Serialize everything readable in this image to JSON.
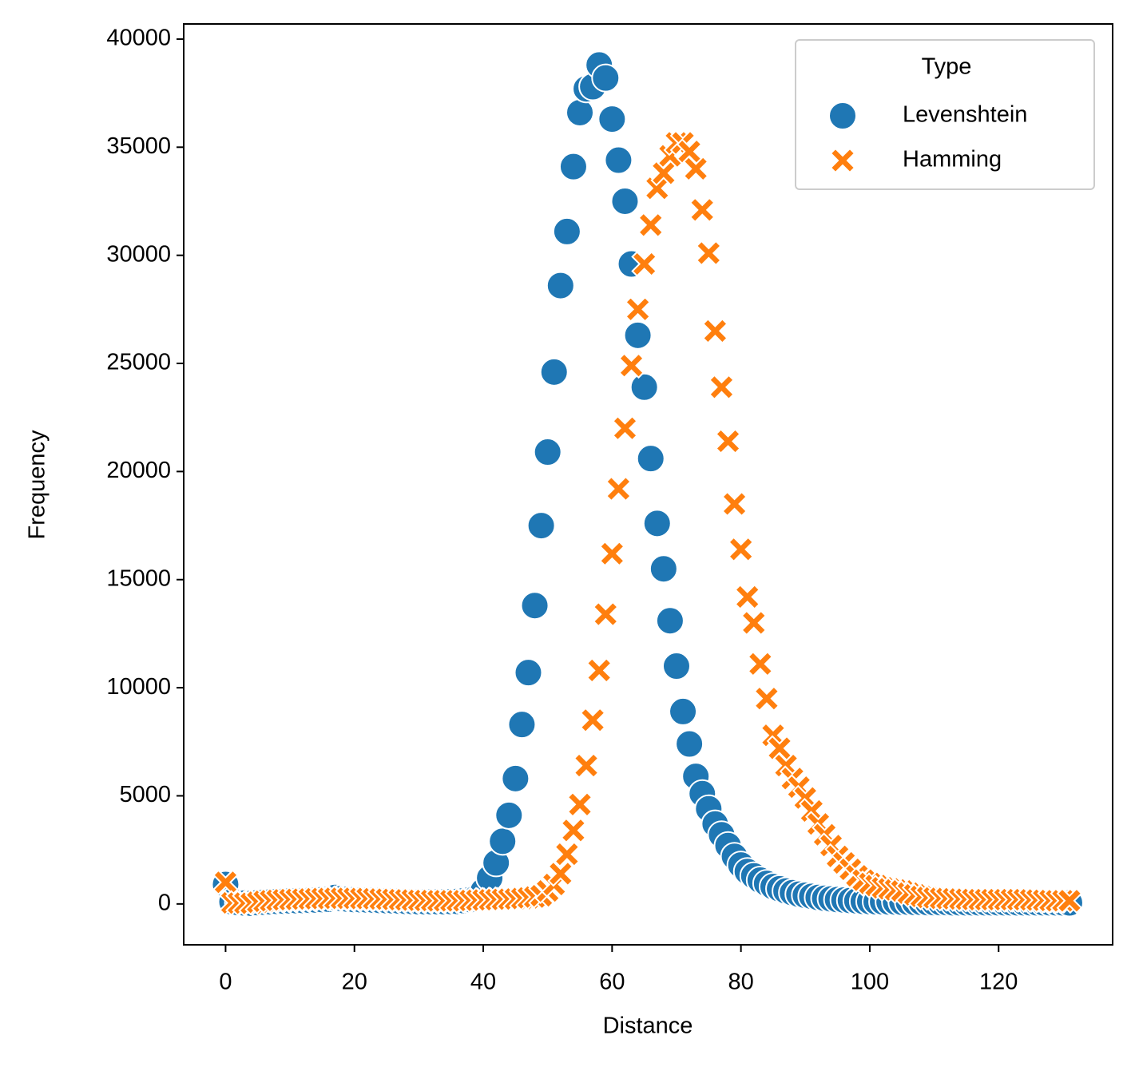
{
  "chart_data": {
    "type": "scatter",
    "x_label": "Distance",
    "y_label": "Frequency",
    "legend_title": "Type",
    "legend": "upper right",
    "xlim": [
      -6.5,
      137.7
    ],
    "ylim": [
      -1890,
      40700
    ],
    "xticks": [
      0,
      20,
      40,
      60,
      80,
      100,
      120
    ],
    "yticks": [
      0,
      5000,
      10000,
      15000,
      20000,
      25000,
      30000,
      35000,
      40000
    ],
    "grid": false,
    "x": [
      0,
      1,
      2,
      3,
      4,
      5,
      6,
      7,
      8,
      9,
      10,
      11,
      12,
      13,
      14,
      15,
      16,
      17,
      18,
      19,
      20,
      21,
      22,
      23,
      24,
      25,
      26,
      27,
      28,
      29,
      30,
      31,
      32,
      33,
      34,
      35,
      36,
      37,
      38,
      39,
      40,
      41,
      42,
      43,
      44,
      45,
      46,
      47,
      48,
      49,
      50,
      51,
      52,
      53,
      54,
      55,
      56,
      57,
      58,
      59,
      60,
      61,
      62,
      63,
      64,
      65,
      66,
      67,
      68,
      69,
      70,
      71,
      72,
      73,
      74,
      75,
      76,
      77,
      78,
      79,
      80,
      81,
      82,
      83,
      84,
      85,
      86,
      87,
      88,
      89,
      90,
      91,
      92,
      93,
      94,
      95,
      96,
      97,
      98,
      99,
      100,
      101,
      102,
      103,
      104,
      105,
      106,
      107,
      108,
      109,
      110,
      111,
      112,
      113,
      114,
      115,
      116,
      117,
      118,
      119,
      120,
      121,
      122,
      123,
      124,
      125,
      126,
      127,
      128,
      129,
      130,
      131
    ],
    "series": [
      {
        "name": "Levenshtein",
        "color": "#1f77b4",
        "marker": "circle",
        "values": [
          900,
          100,
          60,
          40,
          30,
          60,
          80,
          100,
          120,
          130,
          140,
          150,
          160,
          170,
          180,
          200,
          220,
          300,
          250,
          220,
          200,
          190,
          180,
          170,
          160,
          150,
          140,
          130,
          120,
          110,
          100,
          100,
          100,
          100,
          100,
          110,
          120,
          150,
          200,
          300,
          600,
          1200,
          1900,
          2900,
          4100,
          5800,
          8300,
          10700,
          13800,
          17500,
          20900,
          24600,
          28600,
          31100,
          34100,
          36600,
          37700,
          37800,
          38800,
          38200,
          36300,
          34400,
          32500,
          29600,
          26300,
          23900,
          20600,
          17600,
          15500,
          13100,
          11000,
          8900,
          7400,
          5900,
          5100,
          4400,
          3700,
          3200,
          2700,
          2200,
          1800,
          1500,
          1300,
          1100,
          950,
          800,
          700,
          600,
          520,
          450,
          400,
          350,
          300,
          260,
          230,
          200,
          180,
          160,
          140,
          120,
          110,
          100,
          100,
          90,
          90,
          80,
          80,
          70,
          70,
          60,
          60,
          60,
          60,
          50,
          50,
          50,
          50,
          50,
          50,
          50,
          50,
          50,
          50,
          50,
          50,
          50,
          50,
          50,
          50,
          50,
          50,
          50
        ]
      },
      {
        "name": "Hamming",
        "color": "#ff7f0e",
        "marker": "x",
        "values": [
          1000,
          50,
          40,
          40,
          30,
          80,
          120,
          150,
          170,
          190,
          200,
          210,
          220,
          230,
          240,
          250,
          250,
          260,
          260,
          260,
          260,
          250,
          250,
          240,
          230,
          220,
          210,
          200,
          190,
          180,
          170,
          160,
          160,
          150,
          150,
          150,
          150,
          150,
          160,
          170,
          180,
          190,
          200,
          210,
          220,
          230,
          250,
          280,
          320,
          380,
          600,
          900,
          1400,
          2300,
          3400,
          4600,
          6400,
          8500,
          10800,
          13400,
          16200,
          19200,
          22000,
          24900,
          27500,
          29600,
          31400,
          33100,
          33800,
          34600,
          35200,
          35200,
          34800,
          34000,
          32100,
          30100,
          26500,
          23900,
          21400,
          18500,
          16400,
          14200,
          13000,
          11100,
          9500,
          7800,
          7200,
          6400,
          5800,
          5400,
          4900,
          4300,
          3700,
          3200,
          2700,
          2200,
          1900,
          1600,
          1300,
          1100,
          950,
          850,
          750,
          700,
          650,
          600,
          500,
          420,
          350,
          300,
          280,
          260,
          250,
          240,
          230,
          220,
          210,
          200,
          200,
          200,
          200,
          200,
          200,
          200,
          200,
          190,
          180,
          170,
          160,
          150,
          150,
          150
        ]
      }
    ]
  }
}
